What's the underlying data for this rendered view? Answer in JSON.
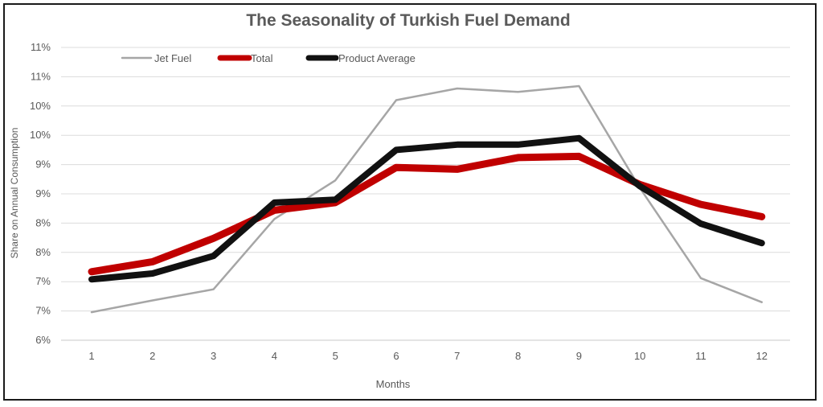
{
  "chart_data": {
    "type": "line",
    "title": "The Seasonality of Turkish Fuel Demand",
    "xlabel": "Months",
    "ylabel": "Share on Annual Consumption",
    "categories": [
      "1",
      "2",
      "3",
      "4",
      "5",
      "6",
      "7",
      "8",
      "9",
      "10",
      "11",
      "12"
    ],
    "y_tick_labels": [
      "6%",
      "7%",
      "7%",
      "8%",
      "8%",
      "9%",
      "9%",
      "10%",
      "10%",
      "11%",
      "11%"
    ],
    "ylim": [
      6.0,
      11.0
    ],
    "grid": true,
    "legend_position": "top-left",
    "series": [
      {
        "name": "Jet Fuel",
        "color": "#a6a6a6",
        "values": [
          6.48,
          6.68,
          6.87,
          8.07,
          8.73,
          10.1,
          10.3,
          10.24,
          10.34,
          8.6,
          7.06,
          6.65
        ]
      },
      {
        "name": "Total",
        "color": "#c00000",
        "values": [
          7.17,
          7.34,
          7.74,
          8.22,
          8.35,
          8.95,
          8.92,
          9.12,
          9.14,
          8.66,
          8.32,
          8.11
        ]
      },
      {
        "name": "Product Average",
        "color": "#111111",
        "values": [
          7.04,
          7.14,
          7.44,
          8.35,
          8.4,
          9.25,
          9.34,
          9.34,
          9.45,
          8.63,
          7.99,
          7.66
        ]
      }
    ]
  }
}
